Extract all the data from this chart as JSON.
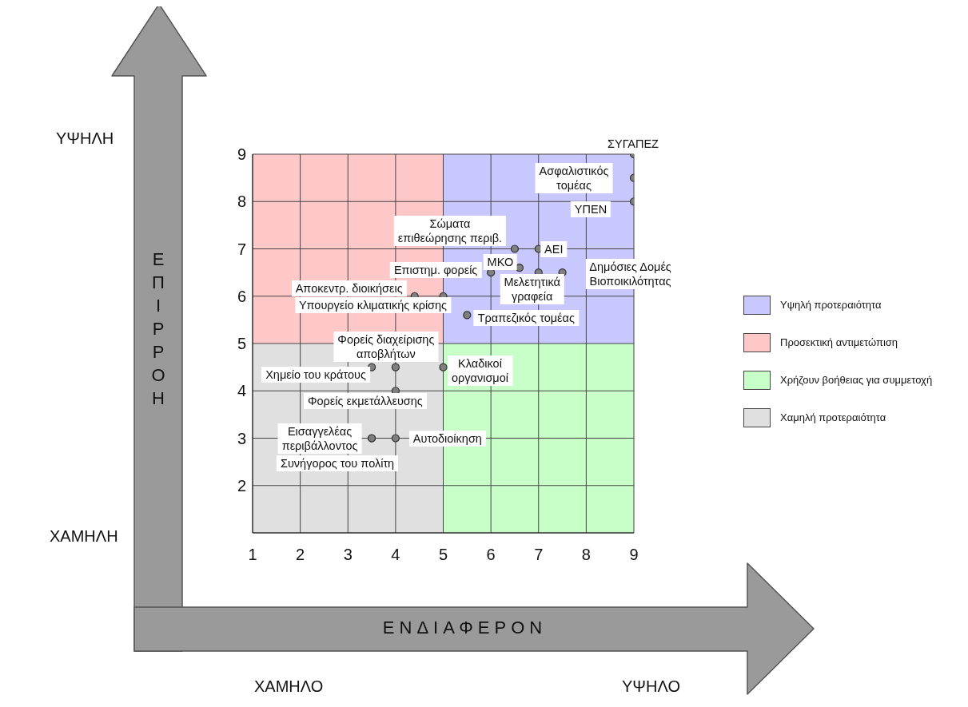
{
  "chart_data": {
    "type": "scatter",
    "xlabel": "ΕΝΔΙΑΦΕΡΟΝ",
    "ylabel": "ΕΠΙΡΡΟΗ",
    "xlim": [
      1,
      9
    ],
    "ylim": [
      1,
      9
    ],
    "xticks": [
      1,
      2,
      3,
      4,
      5,
      6,
      7,
      8,
      9
    ],
    "yticks": [
      {
        "value": 1,
        "label": null
      },
      2,
      3,
      4,
      5,
      6,
      7,
      8,
      9
    ],
    "grid": true,
    "legend": "right",
    "series": [
      {
        "type": "area",
        "name": "Υψηλή προτεραιότητα",
        "color": "#c8c8ff",
        "x": [
          5,
          9
        ],
        "values": [
          9,
          9
        ]
      },
      {
        "type": "area",
        "name": "Προσεκτική αντιμετώπιση",
        "color": "#ffc8c8",
        "x": [
          1,
          5
        ],
        "values": [
          9,
          9
        ]
      },
      {
        "type": "area",
        "name": "Χρήζουν βοήθειας για συμμετοχή",
        "color": "#c8ffc8",
        "x": [
          5,
          9
        ],
        "values": [
          5,
          5
        ]
      },
      {
        "type": "area",
        "name": "Χαμηλή προτεραιότητα",
        "color": "#e0e0e0",
        "x": [
          1,
          5
        ],
        "values": [
          5,
          5
        ]
      },
      {
        "type": "scatter",
        "marker": "circle",
        "color": "#808080",
        "x": [
          9,
          9,
          9,
          6.5,
          7,
          6.6,
          6,
          7,
          7.5,
          4.4,
          5,
          5.5,
          4,
          3.5,
          5,
          4,
          3.5,
          4,
          3.5
        ],
        "values": [
          9,
          8.5,
          8,
          7,
          7,
          6.6,
          6.5,
          6.5,
          6.5,
          6,
          6,
          5.6,
          4.5,
          4.5,
          4.5,
          4,
          3,
          3,
          3
        ]
      }
    ],
    "annotations": [
      {
        "text": "ΣΥΓΑΠΕΖ",
        "x": 9,
        "y": 9
      },
      {
        "text": "Ασφαλιστικός\nτομέας",
        "x": 9,
        "y": 8.5
      },
      {
        "text": "ΥΠΕΝ",
        "x": 9,
        "y": 8
      },
      {
        "text": "Σώματα\nεπιθεώρησης περιβ.",
        "x": 6.5,
        "y": 7
      },
      {
        "text": "ΑΕΙ",
        "x": 7,
        "y": 7
      },
      {
        "text": "ΜΚΟ",
        "x": 6.6,
        "y": 6.6
      },
      {
        "text": "Επιστημ. φορείς",
        "x": 6,
        "y": 6.5
      },
      {
        "text": "Μελετητικά\nγραφεία",
        "x": 7,
        "y": 6.5
      },
      {
        "text": "Δημόσιες Δομές\nΒιοποικιλότητας",
        "x": 7.5,
        "y": 6.5
      },
      {
        "text": "Αποκεντρ. διοικήσεις",
        "x": 4.4,
        "y": 6
      },
      {
        "text": "Υπουργείο κλιματικής κρίσης",
        "x": 5,
        "y": 6
      },
      {
        "text": "Τραπεζικός τομέας",
        "x": 5.5,
        "y": 5.6
      },
      {
        "text": "Φορείς διαχείρισης\nαποβλήτων",
        "x": 4,
        "y": 4.5
      },
      {
        "text": "Χημείο του κράτους",
        "x": 3.5,
        "y": 4.5
      },
      {
        "text": "Κλαδικοί\nοργανισμοί",
        "x": 5,
        "y": 4.5
      },
      {
        "text": "Φορείς εκμετάλλευσης",
        "x": 4,
        "y": 4
      },
      {
        "text": "Εισαγγελέας\nπεριβάλλοντος",
        "x": 3.5,
        "y": 3
      },
      {
        "text": "Αυτοδιοίκηση",
        "x": 4,
        "y": 3
      },
      {
        "text": "Συνήγορος του πολίτη",
        "x": 3.5,
        "y": 3
      },
      "ΥΨΗΛΗ",
      "ΧΑΜΗΛΗ",
      "ΧΑΜΗΛΟ",
      "ΥΨΗΛΟ"
    ]
  }
}
